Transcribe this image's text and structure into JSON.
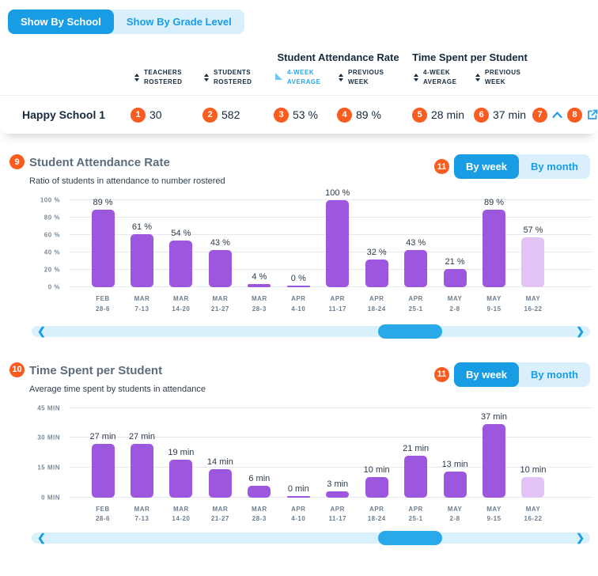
{
  "view_toggle": {
    "school_label": "Show By School",
    "grade_label": "Show By Grade Level"
  },
  "table": {
    "group_headers": [
      "Student Attendance Rate",
      "Time Spent per Student"
    ],
    "columns": [
      {
        "line1": "TEACHERS",
        "line2": "ROSTERED"
      },
      {
        "line1": "STUDENTS",
        "line2": "ROSTERED"
      },
      {
        "line1": "4-WEEK",
        "line2": "AVERAGE"
      },
      {
        "line1": "PREVIOUS",
        "line2": "WEEK"
      },
      {
        "line1": "4-WEEK",
        "line2": "AVERAGE"
      },
      {
        "line1": "PREVIOUS",
        "line2": "WEEK"
      }
    ],
    "sorted_column_index": 2,
    "row": {
      "name": "Happy School 1",
      "values": [
        "30",
        "582",
        "53 %",
        "89 %",
        "28 min",
        "37 min"
      ],
      "value_badges": [
        "1",
        "2",
        "3",
        "4",
        "5",
        "6"
      ],
      "collapse_badge": "7",
      "external_badge": "8"
    }
  },
  "sections": [
    {
      "badge": "9",
      "title": "Student Attendance Rate",
      "subtitle": "Ratio of students in attendance to number rostered",
      "toggle_badge": "11",
      "by_week": "By week",
      "by_month": "By month"
    },
    {
      "badge": "10",
      "title": "Time Spent per Student",
      "subtitle": "Average time spent by students in attendance",
      "toggle_badge": "11",
      "by_week": "By week",
      "by_month": "By month"
    }
  ],
  "chart_data": [
    {
      "type": "bar",
      "title": "Student Attendance Rate",
      "categories": [
        [
          "FEB",
          "28-6"
        ],
        [
          "MAR",
          "7-13"
        ],
        [
          "MAR",
          "14-20"
        ],
        [
          "MAR",
          "21-27"
        ],
        [
          "MAR",
          "28-3"
        ],
        [
          "APR",
          "4-10"
        ],
        [
          "APR",
          "11-17"
        ],
        [
          "APR",
          "18-24"
        ],
        [
          "APR",
          "25-1"
        ],
        [
          "MAY",
          "2-8"
        ],
        [
          "MAY",
          "9-15"
        ],
        [
          "MAY",
          "16-22"
        ]
      ],
      "values": [
        89,
        61,
        54,
        43,
        4,
        0,
        100,
        32,
        43,
        21,
        89,
        57
      ],
      "label_suffix": "%",
      "yticks": [
        "0 %",
        "20 %",
        "40 %",
        "60 %",
        "80 %",
        "100 %"
      ],
      "ylim": [
        0,
        100
      ],
      "grid": true,
      "muted_last_bar": true
    },
    {
      "type": "bar",
      "title": "Time Spent per Student",
      "categories": [
        [
          "FEB",
          "28-6"
        ],
        [
          "MAR",
          "7-13"
        ],
        [
          "MAR",
          "14-20"
        ],
        [
          "MAR",
          "21-27"
        ],
        [
          "MAR",
          "28-3"
        ],
        [
          "APR",
          "4-10"
        ],
        [
          "APR",
          "11-17"
        ],
        [
          "APR",
          "18-24"
        ],
        [
          "APR",
          "25-1"
        ],
        [
          "MAY",
          "2-8"
        ],
        [
          "MAY",
          "9-15"
        ],
        [
          "MAY",
          "16-22"
        ]
      ],
      "values": [
        27,
        27,
        19,
        14,
        6,
        0,
        3,
        10,
        21,
        13,
        37,
        10
      ],
      "label_suffix": "min",
      "yticks": [
        "0 MIN",
        "15 MIN",
        "30 MIN",
        "45 MIN"
      ],
      "ylim": [
        0,
        45
      ],
      "grid": true,
      "muted_last_bar": true
    }
  ],
  "scrollbar": {
    "thumb_left_pct": 62,
    "thumb_width_pct": 11.5
  },
  "colors": {
    "accent_blue": "#189DE4",
    "light_blue": "#D9F0FC",
    "badge_orange": "#F95C1F",
    "bar_purple": "#9D57DE",
    "bar_purple_muted": "#E3C3F6",
    "gridline": "#E6E8F0"
  }
}
